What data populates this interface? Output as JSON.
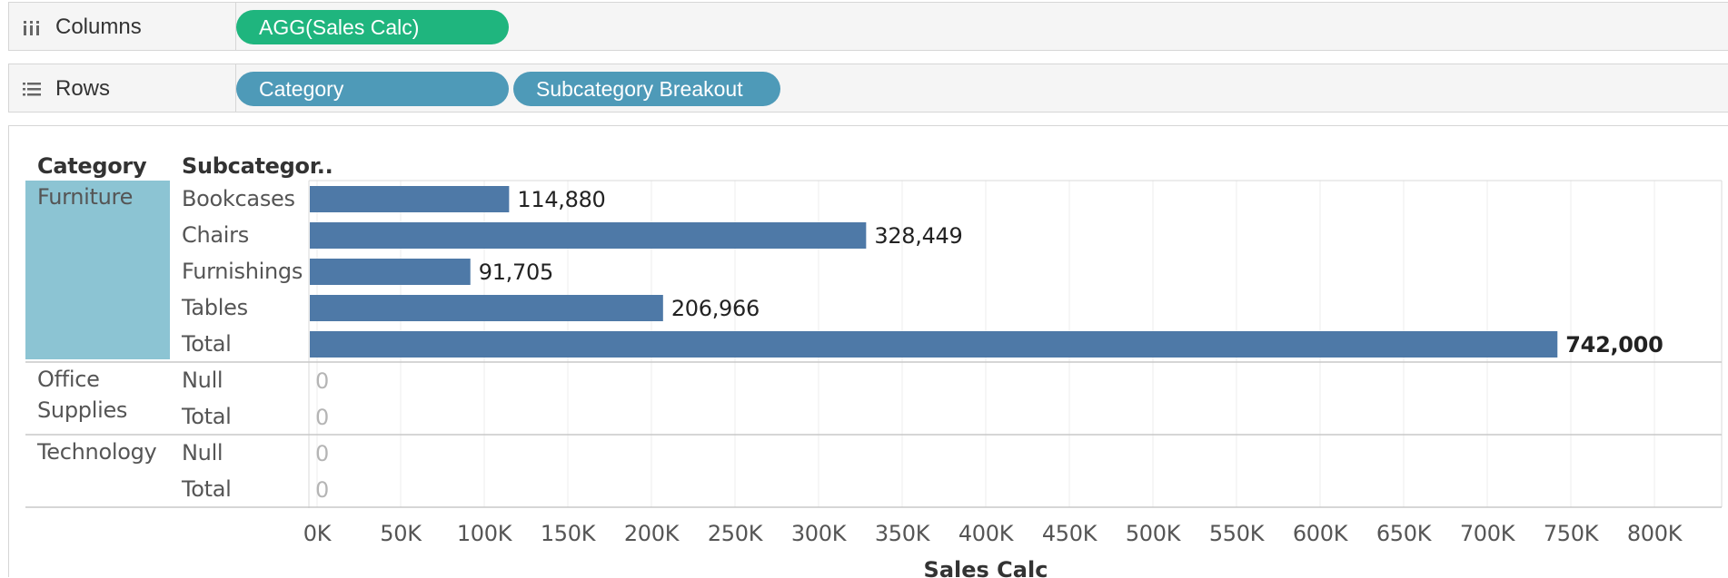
{
  "shelves": {
    "columns": {
      "label": "Columns",
      "icon": "columns-icon",
      "pills": [
        "AGG(Sales Calc)"
      ]
    },
    "rows": {
      "label": "Rows",
      "icon": "rows-icon",
      "pills": [
        "Category",
        "Subcategory Breakout"
      ]
    }
  },
  "table": {
    "headers": {
      "category": "Category",
      "subcategory": "Subcategor.."
    },
    "groups": [
      {
        "category": "Furniture",
        "rows": [
          {
            "sub": "Bookcases",
            "value": 114880,
            "label": "114,880"
          },
          {
            "sub": "Chairs",
            "value": 328449,
            "label": "328,449"
          },
          {
            "sub": "Furnishings",
            "value": 91705,
            "label": "91,705"
          },
          {
            "sub": "Tables",
            "value": 206966,
            "label": "206,966"
          },
          {
            "sub": "Total",
            "value": 742000,
            "label": "742,000"
          }
        ]
      },
      {
        "category": "Office Supplies",
        "category_lines": [
          "Office",
          "Supplies"
        ],
        "rows": [
          {
            "sub": "Null",
            "value": 0,
            "label": "0"
          },
          {
            "sub": "Total",
            "value": 0,
            "label": "0"
          }
        ]
      },
      {
        "category": "Technology",
        "rows": [
          {
            "sub": "Null",
            "value": 0,
            "label": "0"
          },
          {
            "sub": "Total",
            "value": 0,
            "label": "0"
          }
        ]
      }
    ]
  },
  "chart_data": {
    "type": "bar",
    "orientation": "horizontal",
    "categories": [
      "Furniture / Bookcases",
      "Furniture / Chairs",
      "Furniture / Furnishings",
      "Furniture / Tables",
      "Furniture / Total",
      "Office Supplies / Null",
      "Office Supplies / Total",
      "Technology / Null",
      "Technology / Total"
    ],
    "values": [
      114880,
      328449,
      91705,
      206966,
      742000,
      0,
      0,
      0,
      0
    ],
    "xlabel": "Sales Calc",
    "xlim": [
      0,
      800000
    ],
    "ticks": [
      "0K",
      "50K",
      "100K",
      "150K",
      "200K",
      "250K",
      "300K",
      "350K",
      "400K",
      "450K",
      "500K",
      "550K",
      "600K",
      "650K",
      "700K",
      "750K",
      "800K"
    ],
    "grid": true,
    "colors": {
      "bar": "#4e79a7",
      "highlight": "#8cc4d3"
    }
  }
}
